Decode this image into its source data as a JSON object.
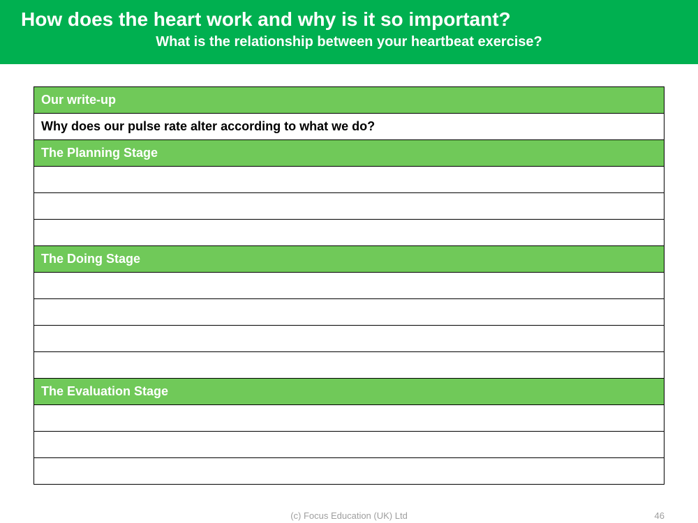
{
  "colors": {
    "header_green": "#00b050",
    "light_green": "#70c959",
    "white": "#ffffff",
    "black": "#000000",
    "footer_grey": "#9e9e9e"
  },
  "header": {
    "title": "How does the heart work and why is it so important?",
    "subtitle": "What is the relationship between your heartbeat exercise?"
  },
  "worksheet": {
    "section_title": "Our write-up",
    "question": "Why does our pulse rate alter according to what we do?",
    "stages": [
      {
        "title": "The Planning Stage",
        "blank_rows": 3
      },
      {
        "title": "The Doing Stage",
        "blank_rows": 4
      },
      {
        "title": "The Evaluation Stage",
        "blank_rows": 3
      }
    ]
  },
  "footer": {
    "copyright": "(c) Focus Education (UK) Ltd",
    "page": "46"
  }
}
